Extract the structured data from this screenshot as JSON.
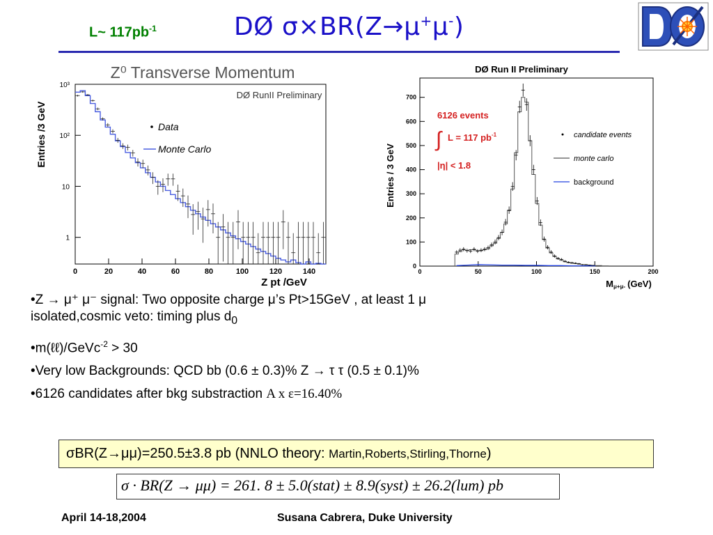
{
  "header": {
    "lumi_prefix": "L~ 117pb",
    "lumi_sup": "-1",
    "title_main": "DØ σ×BR(Z→μ",
    "title_sup1": "+",
    "title_mid": "μ",
    "title_sup2": "-",
    "title_end": ")",
    "logo_text": "DØ",
    "colors": {
      "lumi": "#008000",
      "title": "#1a10c8",
      "rule": "#2a2ab0"
    }
  },
  "chart_data": [
    {
      "type": "histogram",
      "title": "Z⁰ Transverse Momentum",
      "annotation": "DØ RunII Preliminary",
      "xlabel": "Z pt /GeV",
      "ylabel": "Entries /3 GeV",
      "log_y": true,
      "xlim": [
        0,
        150
      ],
      "ylim": [
        0.3,
        1000
      ],
      "x_ticks": [
        "0",
        "20",
        "40",
        "60",
        "80",
        "100",
        "120",
        "140"
      ],
      "y_ticks": [
        "1",
        "10",
        "10²",
        "10³"
      ],
      "legend": [
        {
          "label": "Data",
          "marker": "dot"
        },
        {
          "label": "Monte Carlo",
          "marker": "line",
          "color": "#4a5ee0"
        }
      ],
      "series": [
        {
          "name": "Monte Carlo",
          "x": [
            1.5,
            4.5,
            7.5,
            10.5,
            13.5,
            16.5,
            19.5,
            22.5,
            25.5,
            28.5,
            31.5,
            34.5,
            37.5,
            40.5,
            43.5,
            46.5,
            49.5,
            52.5,
            55.5,
            58.5,
            61.5,
            64.5,
            67.5,
            70.5,
            73.5,
            76.5,
            79.5,
            82.5,
            85.5,
            88.5,
            91.5,
            94.5,
            97.5,
            100.5,
            103.5,
            106.5,
            109.5,
            112.5,
            115.5,
            118.5,
            121.5,
            124.5,
            127.5,
            130.5,
            133.5,
            136.5,
            139.5,
            142.5,
            145.5,
            148.5
          ],
          "y": [
            700,
            750,
            600,
            420,
            290,
            200,
            145,
            105,
            78,
            60,
            46,
            36,
            29,
            23,
            18.5,
            15,
            12.2,
            10,
            8.3,
            6.9,
            5.7,
            4.8,
            4.0,
            3.4,
            2.9,
            2.5,
            2.15,
            1.85,
            1.6,
            1.4,
            1.22,
            1.07,
            0.94,
            0.83,
            0.74,
            0.66,
            0.59,
            0.53,
            0.48,
            0.43,
            0.39,
            0.36,
            0.33,
            0.36,
            0.32,
            0.3,
            0.33,
            0.3,
            0.31,
            0.3
          ]
        },
        {
          "name": "Data",
          "x": [
            1.5,
            4.5,
            7.5,
            10.5,
            13.5,
            16.5,
            19.5,
            22.5,
            25.5,
            28.5,
            31.5,
            34.5,
            37.5,
            40.5,
            43.5,
            46.5,
            49.5,
            52.5,
            55.5,
            58.5,
            61.5,
            64.5,
            67.5,
            70.5,
            73.5,
            76.5,
            79.5,
            82.5,
            85.5,
            88.5,
            91.5,
            94.5,
            97.5,
            100.5,
            103.5,
            106.5,
            109.5,
            112.5,
            115.5,
            118.5,
            121.5,
            124.5,
            127.5,
            130.5,
            133.5,
            136.5,
            139.5,
            142.5,
            145.5,
            148.5
          ],
          "y": [
            600,
            710,
            620,
            480,
            330,
            210,
            160,
            120,
            80,
            62,
            58,
            45,
            30,
            28,
            21,
            15,
            10,
            11,
            14,
            14,
            8,
            6.5,
            4.5,
            2.8,
            3.2,
            2.3,
            3.5,
            2.9,
            1,
            1.6,
            1,
            1,
            2,
            1,
            1,
            1,
            0.5,
            1,
            1,
            1,
            1,
            2,
            1,
            0.5,
            1,
            1,
            1,
            1,
            0.5,
            1
          ]
        }
      ]
    },
    {
      "type": "histogram",
      "title": "DØ Run II Preliminary",
      "xlabel": "M",
      "xlabel_sub": "μ+μ-",
      "xlabel_unit": "(GeV)",
      "ylabel": "Entries / 3 GeV",
      "xlim": [
        0,
        200
      ],
      "ylim": [
        0,
        780
      ],
      "x_ticks": [
        "0",
        "50",
        "100",
        "150",
        "200"
      ],
      "y_ticks": [
        "0",
        "100",
        "200",
        "300",
        "400",
        "500",
        "600",
        "700"
      ],
      "annotation": {
        "events": "6126 events",
        "lumi": "L = 117 pb",
        "lumi_sup": "-1",
        "eta": "|η| < 1.8",
        "color": "#d42020"
      },
      "legend": [
        {
          "label": "candidate events",
          "marker": "dot"
        },
        {
          "label": "monte carlo",
          "marker": "line",
          "color": "#555555"
        },
        {
          "label": "background",
          "marker": "line",
          "color": "#2040e0"
        }
      ],
      "series": [
        {
          "name": "monte carlo",
          "x": [
            31.5,
            34.5,
            37.5,
            40.5,
            43.5,
            46.5,
            49.5,
            52.5,
            55.5,
            58.5,
            61.5,
            64.5,
            67.5,
            70.5,
            73.5,
            76.5,
            79.5,
            82.5,
            85.5,
            88.5,
            91.5,
            94.5,
            97.5,
            100.5,
            103.5,
            106.5,
            109.5,
            112.5,
            115.5,
            118.5,
            121.5,
            124.5,
            127.5,
            130.5,
            133.5,
            136.5,
            139.5,
            142.5,
            145.5,
            148.5,
            151.5,
            154.5,
            157.5,
            160.5
          ],
          "y": [
            50,
            60,
            68,
            65,
            68,
            68,
            64,
            64,
            68,
            72,
            84,
            95,
            115,
            140,
            175,
            230,
            320,
            470,
            640,
            700,
            680,
            520,
            380,
            260,
            170,
            110,
            75,
            55,
            40,
            30,
            24,
            18,
            14,
            12,
            10,
            8,
            6,
            5,
            4,
            3,
            2,
            2,
            1,
            1
          ]
        },
        {
          "name": "candidate events",
          "x": [
            31.5,
            34.5,
            37.5,
            40.5,
            43.5,
            46.5,
            49.5,
            52.5,
            55.5,
            58.5,
            61.5,
            64.5,
            67.5,
            70.5,
            73.5,
            76.5,
            79.5,
            82.5,
            85.5,
            88.5,
            91.5,
            94.5,
            97.5,
            100.5,
            103.5,
            106.5,
            109.5,
            112.5,
            115.5,
            118.5,
            121.5,
            124.5,
            127.5,
            130.5,
            133.5,
            136.5,
            139.5,
            142.5,
            145.5,
            148.5
          ],
          "y": [
            58,
            66,
            70,
            64,
            62,
            70,
            62,
            66,
            70,
            76,
            88,
            100,
            118,
            140,
            182,
            232,
            330,
            460,
            660,
            730,
            670,
            520,
            400,
            270,
            180,
            112,
            78,
            58,
            42,
            32,
            28,
            20,
            16,
            14,
            12,
            10,
            6,
            6,
            4,
            3
          ]
        },
        {
          "name": "background",
          "x": [
            31.5,
            40.5,
            50.5,
            60.5,
            70.5,
            80.5,
            90.5,
            100.5,
            110.5,
            120.5,
            130.5,
            140.5,
            150.5
          ],
          "y": [
            2,
            4,
            6,
            5,
            4,
            4,
            3,
            3,
            2,
            2,
            1,
            1,
            1
          ]
        }
      ]
    }
  ],
  "bullets": {
    "b1_a": "•Z → μ⁺ μ⁻ signal: Two  opposite charge μ’s Pt>15GeV , at least 1 μ",
    "b1_b": "isolated,cosmic veto: timing plus d",
    "b1_sub": "0",
    "b2_a": "•m(ℓℓ)/GeVc",
    "b2_sup": "-2",
    "b2_b": " > 30",
    "b3": "•Very low Backgrounds: QCD bb  (0.6 ± 0.3)% Z → τ τ  (0.5 ± 0.1)%",
    "b4_a": "•6126 candidates after bkg substraction ",
    "b4_b": "A x ε=16.40%"
  },
  "result": {
    "main": "σBR(Z→μμ)=250.5±3.8 pb (NNLO theory: ",
    "authors": "Martin,Roberts,Stirling,Thorne",
    "close": ")",
    "box_color": "#ffffcc"
  },
  "formula": "σ · BR(Z → μμ) = 261. 8 ± 5.0(stat) ± 8.9(syst) ± 26.2(lum) pb",
  "footer": {
    "date": "April 14-18,2004",
    "author": "Susana Cabrera, Duke University"
  }
}
